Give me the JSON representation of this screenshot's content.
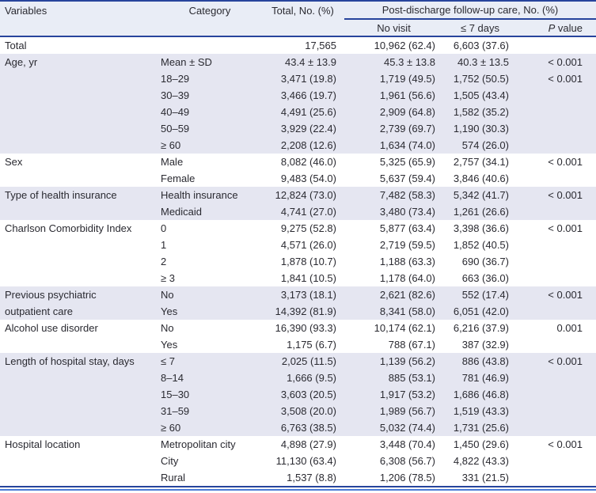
{
  "colors": {
    "navy": "#27449c",
    "light_rule": "#4b7bd6",
    "header_bg": "#e9edf6",
    "band_bg": "#e5e6f1",
    "text": "#2a2a31"
  },
  "table": {
    "headers": {
      "variables": "Variables",
      "category": "Category",
      "total": "Total, No. (%)",
      "followup_span": "Post-discharge follow-up care, No. (%)",
      "no_visit": "No visit",
      "within7": "≤ 7 days",
      "p_italic": "P",
      "p_rest": " value"
    },
    "groups": [
      {
        "variable": "Total",
        "shaded": false,
        "rows": [
          {
            "category": "",
            "total": "17,565",
            "no_visit": "10,962 (62.4)",
            "within7": "6,603 (37.6)",
            "p": ""
          }
        ]
      },
      {
        "variable": "Age, yr",
        "shaded": true,
        "rows": [
          {
            "category": "Mean ± SD",
            "total": "43.4 ± 13.9",
            "no_visit": "45.3 ± 13.8",
            "within7": "40.3 ± 13.5",
            "p": "< 0.001"
          },
          {
            "category": "18–29",
            "total": "3,471 (19.8)",
            "no_visit": "1,719 (49.5)",
            "within7": "1,752 (50.5)",
            "p": "< 0.001"
          },
          {
            "category": "30–39",
            "total": "3,466 (19.7)",
            "no_visit": "1,961 (56.6)",
            "within7": "1,505 (43.4)",
            "p": ""
          },
          {
            "category": "40–49",
            "total": "4,491 (25.6)",
            "no_visit": "2,909 (64.8)",
            "within7": "1,582 (35.2)",
            "p": ""
          },
          {
            "category": "50–59",
            "total": "3,929 (22.4)",
            "no_visit": "2,739 (69.7)",
            "within7": "1,190 (30.3)",
            "p": ""
          },
          {
            "category": "≥ 60",
            "total": "2,208 (12.6)",
            "no_visit": "1,634 (74.0)",
            "within7": "574 (26.0)",
            "p": ""
          }
        ]
      },
      {
        "variable": "Sex",
        "shaded": false,
        "rows": [
          {
            "category": "Male",
            "total": "8,082 (46.0)",
            "no_visit": "5,325 (65.9)",
            "within7": "2,757 (34.1)",
            "p": "< 0.001"
          },
          {
            "category": "Female",
            "total": "9,483 (54.0)",
            "no_visit": "5,637 (59.4)",
            "within7": "3,846 (40.6)",
            "p": ""
          }
        ]
      },
      {
        "variable": "Type of health insurance",
        "shaded": true,
        "rows": [
          {
            "category": "Health insurance",
            "total": "12,824 (73.0)",
            "no_visit": "7,482 (58.3)",
            "within7": "5,342 (41.7)",
            "p": "< 0.001"
          },
          {
            "category": "Medicaid",
            "total": "4,741 (27.0)",
            "no_visit": "3,480 (73.4)",
            "within7": "1,261 (26.6)",
            "p": ""
          }
        ]
      },
      {
        "variable": "Charlson Comorbidity Index",
        "shaded": false,
        "rows": [
          {
            "category": "0",
            "total": "9,275 (52.8)",
            "no_visit": "5,877 (63.4)",
            "within7": "3,398 (36.6)",
            "p": "< 0.001"
          },
          {
            "category": "1",
            "total": "4,571 (26.0)",
            "no_visit": "2,719 (59.5)",
            "within7": "1,852 (40.5)",
            "p": ""
          },
          {
            "category": "2",
            "total": "1,878 (10.7)",
            "no_visit": "1,188 (63.3)",
            "within7": "690 (36.7)",
            "p": ""
          },
          {
            "category": "≥ 3",
            "total": "1,841 (10.5)",
            "no_visit": "1,178 (64.0)",
            "within7": "663 (36.0)",
            "p": ""
          }
        ]
      },
      {
        "variable": "Previous psychiatric\noutpatient care",
        "shaded": true,
        "rows": [
          {
            "category": "No",
            "total": "3,173 (18.1)",
            "no_visit": "2,621 (82.6)",
            "within7": "552 (17.4)",
            "p": "< 0.001"
          },
          {
            "category": "Yes",
            "total": "14,392 (81.9)",
            "no_visit": "8,341 (58.0)",
            "within7": "6,051 (42.0)",
            "p": ""
          }
        ]
      },
      {
        "variable": "Alcohol use disorder",
        "shaded": false,
        "rows": [
          {
            "category": "No",
            "total": "16,390 (93.3)",
            "no_visit": "10,174 (62.1)",
            "within7": "6,216 (37.9)",
            "p": "0.001"
          },
          {
            "category": "Yes",
            "total": "1,175 (6.7)",
            "no_visit": "788 (67.1)",
            "within7": "387 (32.9)",
            "p": ""
          }
        ]
      },
      {
        "variable": "Length of hospital stay, days",
        "shaded": true,
        "rows": [
          {
            "category": "≤ 7",
            "total": "2,025 (11.5)",
            "no_visit": "1,139 (56.2)",
            "within7": "886 (43.8)",
            "p": "< 0.001"
          },
          {
            "category": "8–14",
            "total": "1,666 (9.5)",
            "no_visit": "885 (53.1)",
            "within7": "781 (46.9)",
            "p": ""
          },
          {
            "category": "15–30",
            "total": "3,603 (20.5)",
            "no_visit": "1,917 (53.2)",
            "within7": "1,686 (46.8)",
            "p": ""
          },
          {
            "category": "31–59",
            "total": "3,508 (20.0)",
            "no_visit": "1,989 (56.7)",
            "within7": "1,519 (43.3)",
            "p": ""
          },
          {
            "category": "≥ 60",
            "total": "6,763 (38.5)",
            "no_visit": "5,032 (74.4)",
            "within7": "1,731 (25.6)",
            "p": ""
          }
        ]
      },
      {
        "variable": "Hospital location",
        "shaded": false,
        "rows": [
          {
            "category": "Metropolitan city",
            "total": "4,898 (27.9)",
            "no_visit": "3,448 (70.4)",
            "within7": "1,450 (29.6)",
            "p": "< 0.001"
          },
          {
            "category": "City",
            "total": "11,130 (63.4)",
            "no_visit": "6,308 (56.7)",
            "within7": "4,822 (43.3)",
            "p": ""
          },
          {
            "category": "Rural",
            "total": "1,537 (8.8)",
            "no_visit": "1,206 (78.5)",
            "within7": "331 (21.5)",
            "p": ""
          }
        ]
      }
    ]
  }
}
